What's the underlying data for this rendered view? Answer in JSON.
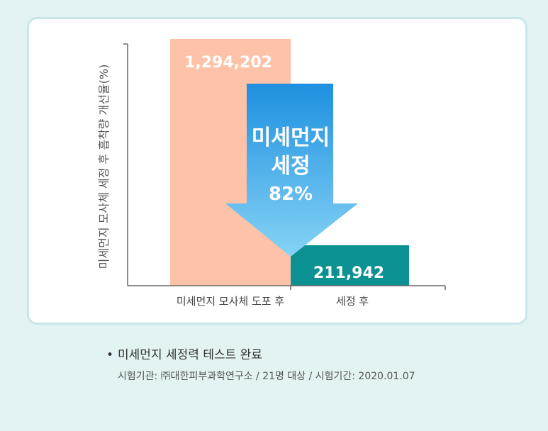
{
  "chart_data": {
    "type": "bar",
    "ylabel": "미세먼지 모사체 세정 후 흡착량 개선율(%)",
    "categories": [
      "미세먼지 모사체 도포 후",
      "세정 후"
    ],
    "values": [
      1294202,
      211942
    ],
    "value_labels": [
      "1,294,202",
      "211,942"
    ],
    "ylim": [
      0,
      1350000
    ],
    "grid": false,
    "colors": [
      "#fdc2a8",
      "#0b9191"
    ],
    "arrow": {
      "line1": "미세먼지",
      "line2": "세정",
      "line3": "82%",
      "color_top": "#1e90e0",
      "color_bottom": "#86d3f5"
    }
  },
  "note": {
    "bullet": "•",
    "title": "미세먼지 세정력 테스트 완료",
    "subtitle": "시험기관: ㈜대한피부과학연구소 / 21명 대상 / 시험기간: 2020.01.07"
  }
}
